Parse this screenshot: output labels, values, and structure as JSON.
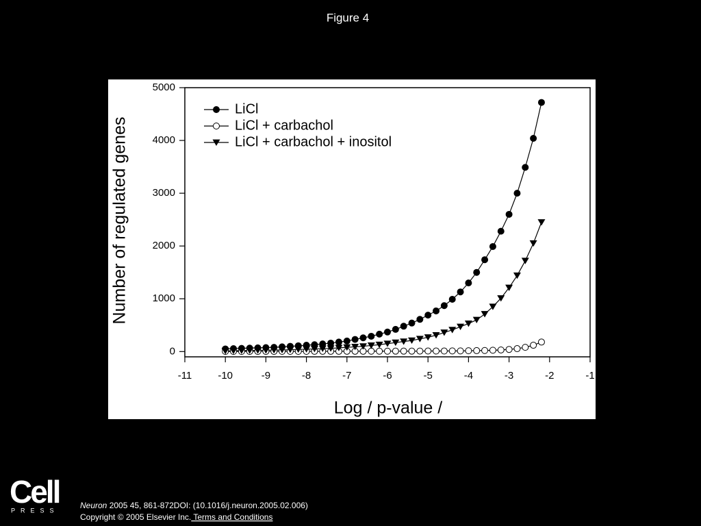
{
  "chart_data": {
    "type": "line",
    "title": "Figure 4",
    "xlabel": "Log / p-value /",
    "ylabel": "Number of regulated genes",
    "x": [
      -10,
      -9.8,
      -9.6,
      -9.4,
      -9.2,
      -9,
      -8.8,
      -8.6,
      -8.4,
      -8.2,
      -8,
      -7.8,
      -7.6,
      -7.4,
      -7.2,
      -7,
      -6.8,
      -6.6,
      -6.4,
      -6.2,
      -6,
      -5.8,
      -5.6,
      -5.4,
      -5.2,
      -5,
      -4.8,
      -4.6,
      -4.4,
      -4.2,
      -4,
      -3.8,
      -3.6,
      -3.4,
      -3.2,
      -3,
      -2.8,
      -2.6,
      -2.4,
      -2.2
    ],
    "series": [
      {
        "name": "LiCl",
        "color": "#000000",
        "marker": "circle",
        "values": [
          50,
          55,
          60,
          65,
          70,
          75,
          80,
          90,
          100,
          110,
          120,
          130,
          145,
          160,
          180,
          200,
          230,
          260,
          290,
          330,
          370,
          420,
          480,
          540,
          610,
          690,
          770,
          870,
          990,
          1130,
          1300,
          1500,
          1740,
          1990,
          2280,
          2600,
          3000,
          3490,
          4040,
          4720
        ]
      },
      {
        "name": "LiCl + carbachol",
        "color": "#000000",
        "marker": "circle-open",
        "values": [
          2,
          2,
          2,
          3,
          3,
          3,
          3,
          4,
          4,
          4,
          4,
          5,
          5,
          5,
          5,
          6,
          6,
          6,
          7,
          7,
          7,
          8,
          8,
          8,
          9,
          10,
          10,
          10,
          12,
          12,
          15,
          18,
          20,
          25,
          30,
          40,
          55,
          80,
          120,
          180
        ]
      },
      {
        "name": "LiCl + carbachol + inositol",
        "color": "#000000",
        "marker": "triangle-down",
        "values": [
          12,
          15,
          18,
          20,
          22,
          25,
          28,
          30,
          35,
          40,
          45,
          50,
          55,
          60,
          70,
          80,
          90,
          100,
          115,
          130,
          150,
          170,
          190,
          210,
          240,
          270,
          310,
          360,
          410,
          470,
          530,
          600,
          710,
          850,
          1010,
          1210,
          1440,
          1720,
          2050,
          2450
        ]
      }
    ],
    "xlim": [
      -11,
      -1
    ],
    "xticks": [
      -11,
      -10,
      -9,
      -8,
      -7,
      -6,
      -5,
      -4,
      -3,
      -2,
      -1
    ],
    "ylim": [
      -100,
      5000
    ],
    "yticks": [
      0,
      1000,
      2000,
      3000,
      4000,
      5000
    ],
    "grid": false,
    "legend": "upper left"
  },
  "footer": {
    "logo": "Cell",
    "logo_sub": "PRESS",
    "journal": "Neuron",
    "citation": " 2005 45, 861-872DOI: (10.1016/j.neuron.2005.02.006)",
    "copyright": "Copyright © 2005 Elsevier Inc.",
    "link": " Terms and Conditions"
  }
}
